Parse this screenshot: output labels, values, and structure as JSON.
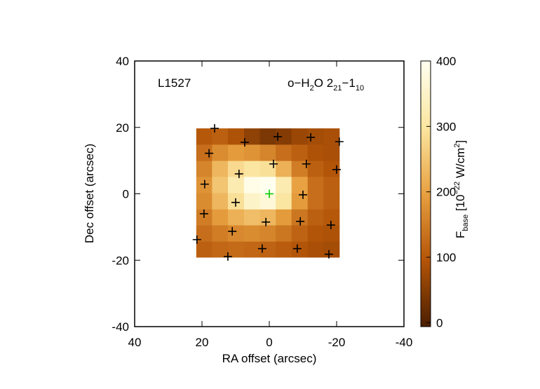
{
  "chart_data": {
    "type": "heatmap",
    "annotations": {
      "source": "L1527",
      "line": [
        "o−H",
        "2",
        "O 2",
        "21",
        "−1",
        "10"
      ]
    },
    "xlabel": "RA offset (arcsec)",
    "ylabel": "Dec offset (arcsec)",
    "xlim": [
      40,
      -40
    ],
    "ylim": [
      -40,
      40
    ],
    "xticks": [
      40,
      20,
      0,
      -20,
      -40
    ],
    "yticks": [
      -40,
      -20,
      0,
      20,
      40
    ],
    "xbins": [
      21.7,
      17.0,
      12.3,
      7.5,
      2.8,
      -1.9,
      -6.6,
      -11.4,
      -16.1,
      -20.8
    ],
    "ybins": [
      -19.1,
      -14.3,
      -9.4,
      -4.6,
      0.3,
      5.2,
      10.0,
      14.9,
      19.7
    ],
    "z": [
      [
        110,
        120,
        125,
        120,
        115,
        105,
        95,
        85,
        80
      ],
      [
        130,
        150,
        165,
        170,
        160,
        140,
        115,
        95,
        90
      ],
      [
        150,
        190,
        220,
        240,
        230,
        190,
        140,
        110,
        100
      ],
      [
        170,
        230,
        290,
        350,
        370,
        300,
        190,
        130,
        110
      ],
      [
        180,
        250,
        320,
        390,
        400,
        320,
        200,
        130,
        110
      ],
      [
        160,
        230,
        280,
        300,
        290,
        220,
        150,
        110,
        95
      ],
      [
        130,
        170,
        190,
        180,
        160,
        130,
        110,
        90,
        85
      ],
      [
        100,
        110,
        90,
        60,
        40,
        50,
        70,
        80,
        85
      ]
    ],
    "colormap": [
      "#4b1e00",
      "#b45508",
      "#e8a040",
      "#fbe6a0",
      "#fffff0"
    ],
    "colorbar": {
      "lim": [
        -6,
        400
      ],
      "ticks": [
        0,
        100,
        200,
        300,
        400
      ],
      "label": [
        "F",
        "base",
        " [10",
        "−22",
        " W/cm",
        "2",
        "]"
      ]
    },
    "markers": {
      "color": "#000000",
      "x": [
        16.25,
        7.3,
        -2.5,
        -12.3,
        -20.8,
        17.9,
        -1.25,
        -11.0,
        -20.0,
        9.0,
        19.2,
        -10.0,
        10.0,
        19.4,
        1.0,
        -9.2,
        -18.3,
        11.0,
        21.5,
        2.1,
        -8.3,
        -17.7,
        12.3
      ],
      "y": [
        19.7,
        15.5,
        17.2,
        17.0,
        15.7,
        12.2,
        9.0,
        9.0,
        7.3,
        6.0,
        2.9,
        -0.3,
        -2.6,
        -6.0,
        -8.5,
        -8.3,
        -9.4,
        -11.3,
        -13.8,
        -16.5,
        -16.5,
        -18.2,
        -18.9
      ]
    },
    "center_marker": {
      "x": 0,
      "y": 0,
      "color": "#00cc00"
    }
  }
}
